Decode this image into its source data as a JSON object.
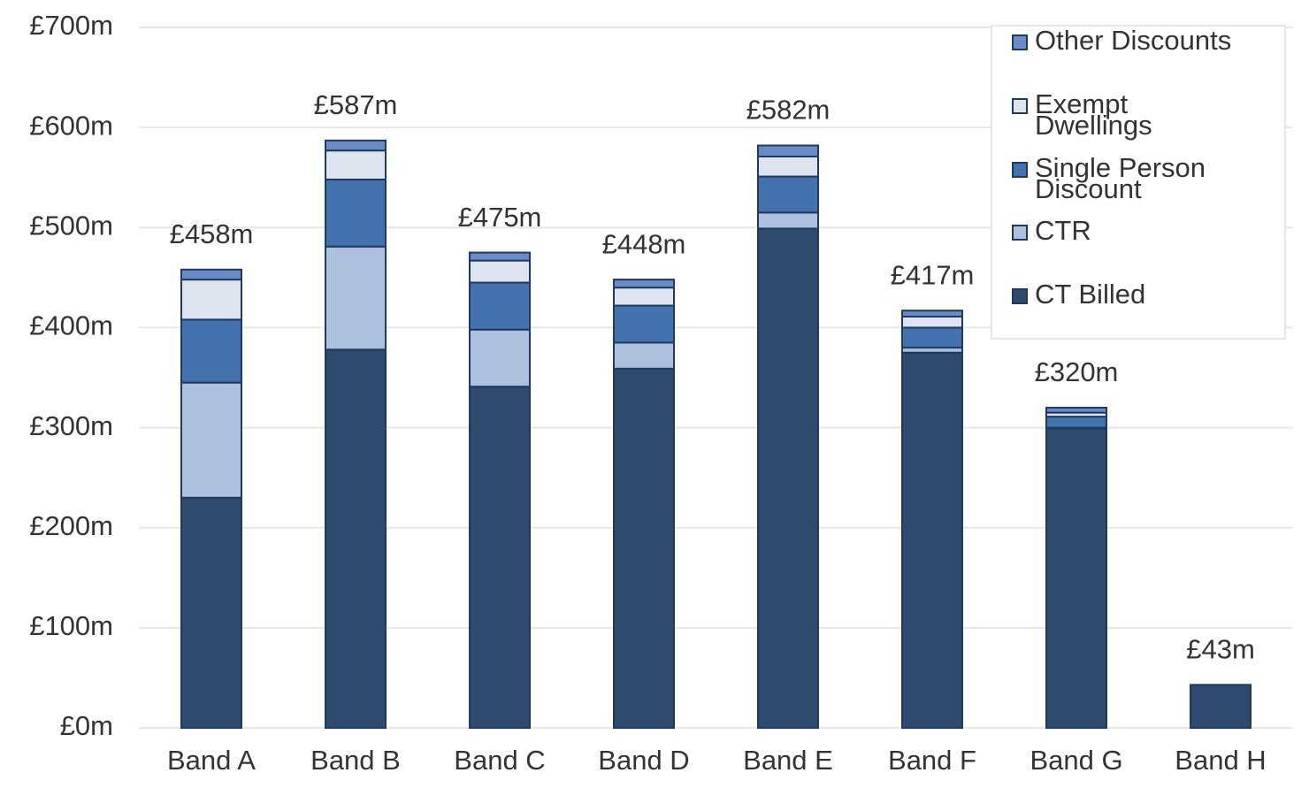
{
  "chart_data": {
    "type": "stacked_bar",
    "categories": [
      "Band A",
      "Band B",
      "Band C",
      "Band D",
      "Band E",
      "Band F",
      "Band G",
      "Band H"
    ],
    "series": [
      {
        "name": "CT Billed",
        "color": "#2e4a6e",
        "values": [
          230,
          378,
          341,
          359,
          499,
          375,
          299,
          43
        ]
      },
      {
        "name": "CTR",
        "color": "#adc1de",
        "values": [
          115,
          103,
          57,
          26,
          16,
          5,
          1,
          0
        ]
      },
      {
        "name": "Single Person Discount",
        "color": "#4472ae",
        "values": [
          63,
          67,
          47,
          37,
          36,
          20,
          11,
          0
        ]
      },
      {
        "name": "Exempt Dwellings",
        "color": "#dde4f0",
        "values": [
          40,
          29,
          22,
          18,
          20,
          11,
          4,
          0
        ]
      },
      {
        "name": "Other Discounts",
        "color": "#6a8cc4",
        "values": [
          10,
          10,
          8,
          8,
          11,
          6,
          5,
          0
        ]
      }
    ],
    "totals": {
      "values": [
        458,
        587,
        475,
        448,
        582,
        417,
        320,
        43
      ],
      "value_labels": [
        "£458m",
        "£587m",
        "£475m",
        "£448m",
        "£582m",
        "£417m",
        "£320m",
        "£43m"
      ]
    },
    "ylim": [
      0,
      700
    ],
    "yticks": [
      {
        "value": 0,
        "label": "£0m"
      },
      {
        "value": 100,
        "label": "£100m"
      },
      {
        "value": 200,
        "label": "£200m"
      },
      {
        "value": 300,
        "label": "£300m"
      },
      {
        "value": 400,
        "label": "£400m"
      },
      {
        "value": 500,
        "label": "£500m"
      },
      {
        "value": 600,
        "label": "£600m"
      },
      {
        "value": 700,
        "label": "£700m"
      }
    ],
    "grid": true,
    "legend": "upper right"
  }
}
